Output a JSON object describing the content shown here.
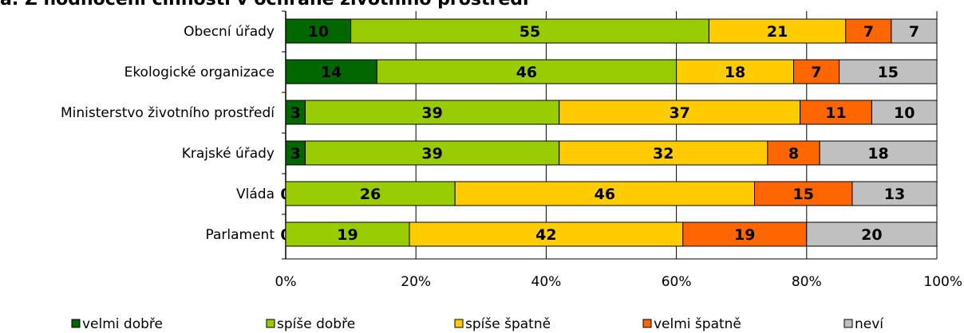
{
  "chart_data": {
    "type": "bar",
    "orientation": "horizontal",
    "stacked": "percent",
    "title_fragment": "a. Z hodnocení činnosti v ochraně životního prostředí",
    "categories": [
      "Obecní úřady",
      "Ekologické organizace",
      "Ministerstvo životního prostředí",
      "Krajské úřady",
      "Vláda",
      "Parlament"
    ],
    "series": [
      {
        "name": "velmi dobře",
        "color": "#006600",
        "values": [
          10,
          14,
          3,
          3,
          0,
          0
        ]
      },
      {
        "name": "spíše dobře",
        "color": "#99CC00",
        "values": [
          55,
          46,
          39,
          39,
          26,
          19
        ]
      },
      {
        "name": "spíše špatně",
        "color": "#FFCC00",
        "values": [
          21,
          18,
          37,
          32,
          46,
          42
        ]
      },
      {
        "name": "velmi špatně",
        "color": "#FF6600",
        "values": [
          7,
          7,
          11,
          8,
          15,
          19
        ]
      },
      {
        "name": "neví",
        "color": "#C0C0C0",
        "values": [
          7,
          15,
          10,
          18,
          13,
          20
        ]
      }
    ],
    "xticks": [
      "0%",
      "20%",
      "40%",
      "60%",
      "80%",
      "100%"
    ],
    "xlim": [
      0,
      100
    ],
    "grid": true,
    "legend_position": "bottom"
  }
}
